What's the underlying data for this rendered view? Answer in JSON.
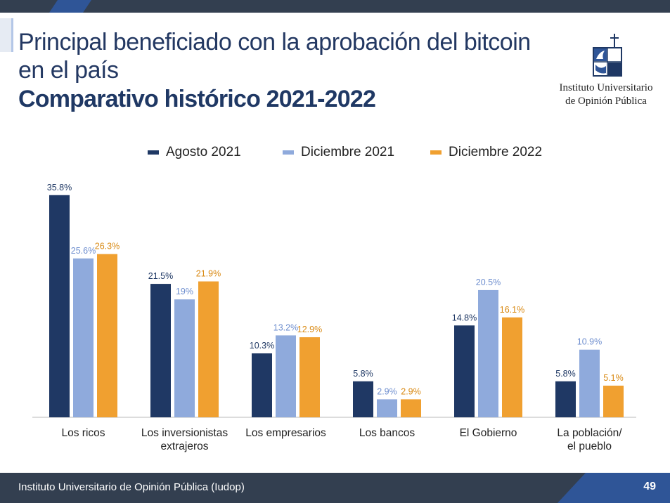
{
  "title": {
    "line1": "Principal beneficiado con la aprobación del bitcoin",
    "line2": "en el país",
    "subtitle": "Comparativo histórico 2021-2022"
  },
  "logo": {
    "line1": "Instituto Universitario",
    "line2": "de Opinión Pública"
  },
  "footer": {
    "text": "Instituto Universitario de Opinión Pública (Iudop)",
    "page": "49"
  },
  "colors": {
    "agosto_2021": "#1f3864",
    "diciembre_2021": "#8faadc",
    "diciembre_2022": "#f0a030"
  },
  "chart_data": {
    "type": "bar",
    "categories": [
      [
        "Los ricos"
      ],
      [
        "Los inversionistas",
        "extrajeros"
      ],
      [
        "Los empresarios"
      ],
      [
        "Los bancos"
      ],
      [
        "El Gobierno"
      ],
      [
        "La población/",
        "el pueblo"
      ]
    ],
    "series": [
      {
        "name": "Agosto 2021",
        "color": "#1f3864",
        "label_color": "#1f3864",
        "values": [
          35.8,
          21.5,
          10.3,
          5.8,
          14.8,
          5.8
        ],
        "labels": [
          "35.8%",
          "21.5%",
          "10.3%",
          "5.8%",
          "14.8%",
          "5.8%"
        ]
      },
      {
        "name": "Diciembre 2021",
        "color": "#8faadc",
        "label_color": "#6f8fcf",
        "values": [
          25.6,
          19,
          13.2,
          2.9,
          20.5,
          10.9
        ],
        "labels": [
          "25.6%",
          "19%",
          "13.2%",
          "2.9%",
          "20.5%",
          "10.9%"
        ]
      },
      {
        "name": "Diciembre 2022",
        "color": "#f0a030",
        "label_color": "#d98a14",
        "values": [
          26.3,
          21.9,
          12.9,
          2.9,
          16.1,
          5.1
        ],
        "labels": [
          "26.3%",
          "21.9%",
          "12.9%",
          "2.9%",
          "16.1%",
          "5.1%"
        ]
      }
    ],
    "ylim": [
      0,
      36
    ],
    "grid": false,
    "legend_position": "top"
  }
}
